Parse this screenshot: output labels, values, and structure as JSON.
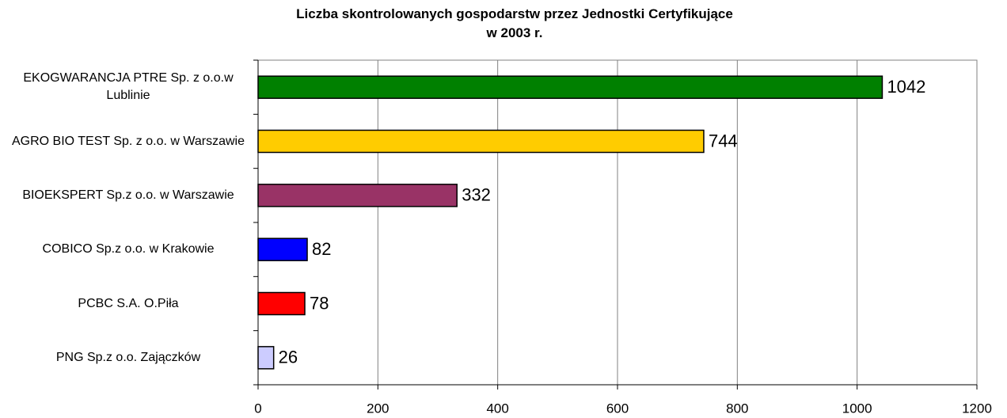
{
  "chart_data": {
    "type": "bar",
    "orientation": "horizontal",
    "title": "Liczba skontrolowanych gospodarstw  przez Jednostki Certyfikujące\nw 2003 r.",
    "categories": [
      "EKOGWARANCJA PTRE Sp. z o.o.w Lublinie",
      "AGRO BIO TEST Sp. z o.o. w Warszawie",
      "BIOEKSPERT Sp.z o.o. w Warszawie",
      "COBICO Sp.z o.o. w Krakowie",
      "PCBC S.A. O.Piła",
      "PNG Sp.z o.o. Zajączków"
    ],
    "values": [
      1042,
      744,
      332,
      82,
      78,
      26
    ],
    "colors": [
      "#008000",
      "#ffcc00",
      "#993366",
      "#0000ff",
      "#ff0000",
      "#ccccff"
    ],
    "xlim": [
      0,
      1200
    ],
    "xticks": [
      0,
      200,
      400,
      600,
      800,
      1000,
      1200
    ],
    "grid": true
  }
}
